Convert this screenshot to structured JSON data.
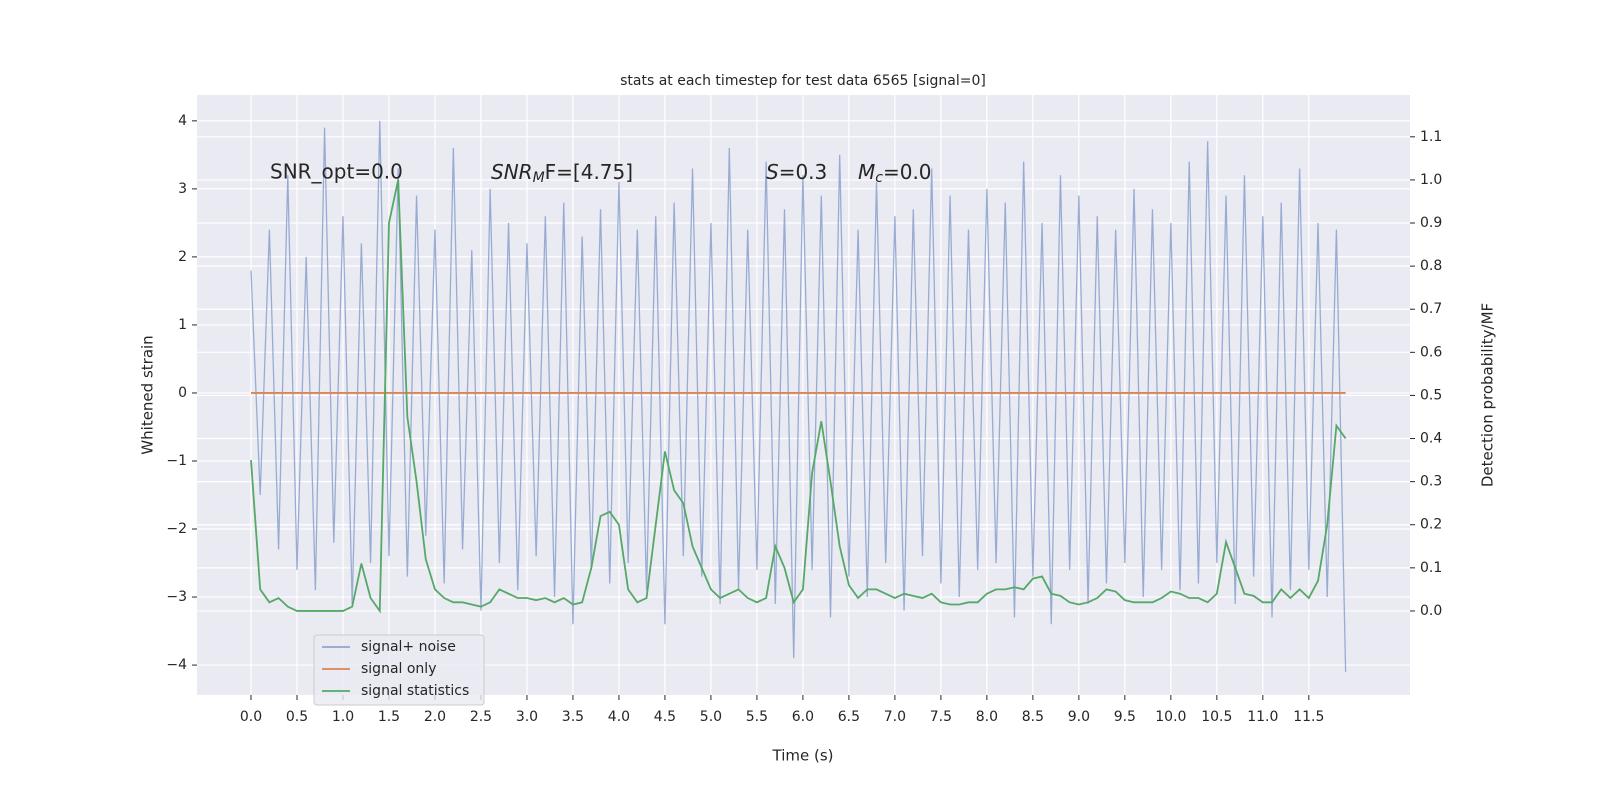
{
  "chart_data": {
    "type": "line",
    "title": "stats at each timestep for test data 6565 [signal=0]",
    "xlabel": "Time (s)",
    "ylabel": "Whitened strain",
    "y2label": "Detection probability/MF",
    "annotations": [
      {
        "text": "SNR_opt=0.0"
      },
      {
        "base": "SNR",
        "sub": "M",
        "rest": "F=[4.75]"
      },
      {
        "base": "S",
        "rest": "=0.3"
      },
      {
        "base": "M",
        "sub": "c",
        "rest": "=0.0"
      }
    ],
    "x": [
      0.0,
      0.1,
      0.2,
      0.3,
      0.4,
      0.5,
      0.6,
      0.7,
      0.8,
      0.9,
      1.0,
      1.1,
      1.2,
      1.3,
      1.4,
      1.5,
      1.6,
      1.7,
      1.8,
      1.9,
      2.0,
      2.1,
      2.2,
      2.3,
      2.4,
      2.5,
      2.6,
      2.7,
      2.8,
      2.9,
      3.0,
      3.1,
      3.2,
      3.3,
      3.4,
      3.5,
      3.6,
      3.7,
      3.8,
      3.9,
      4.0,
      4.1,
      4.2,
      4.3,
      4.4,
      4.5,
      4.6,
      4.7,
      4.8,
      4.9,
      5.0,
      5.1,
      5.2,
      5.3,
      5.4,
      5.5,
      5.6,
      5.7,
      5.8,
      5.9,
      6.0,
      6.1,
      6.2,
      6.3,
      6.4,
      6.5,
      6.6,
      6.7,
      6.8,
      6.9,
      7.0,
      7.1,
      7.2,
      7.3,
      7.4,
      7.5,
      7.6,
      7.7,
      7.8,
      7.9,
      8.0,
      8.1,
      8.2,
      8.3,
      8.4,
      8.5,
      8.6,
      8.7,
      8.8,
      8.9,
      9.0,
      9.1,
      9.2,
      9.3,
      9.4,
      9.5,
      9.6,
      9.7,
      9.8,
      9.9,
      10.0,
      10.1,
      10.2,
      10.3,
      10.4,
      10.5,
      10.6,
      10.7,
      10.8,
      10.9,
      11.0,
      11.1,
      11.2,
      11.3,
      11.4,
      11.5,
      11.6,
      11.7,
      11.8,
      11.9
    ],
    "series": [
      {
        "name": "signal+ noise",
        "color": "#8fa5cf",
        "values": [
          1.8,
          -1.5,
          2.4,
          -2.3,
          3.2,
          -2.6,
          2.0,
          -2.9,
          3.9,
          -2.2,
          2.6,
          -3.1,
          2.2,
          -2.5,
          4.0,
          -2.4,
          3.3,
          -2.7,
          2.9,
          -2.1,
          2.4,
          -2.8,
          3.6,
          -2.3,
          2.1,
          -3.2,
          3.0,
          -2.5,
          2.5,
          -2.9,
          2.2,
          -2.4,
          2.6,
          -3.0,
          2.8,
          -3.4,
          2.3,
          -2.6,
          2.7,
          -2.8,
          3.1,
          -2.5,
          2.4,
          -2.9,
          2.6,
          -3.4,
          2.8,
          -2.4,
          3.3,
          -2.7,
          2.5,
          -3.1,
          3.6,
          -2.9,
          2.4,
          -2.6,
          3.4,
          -3.1,
          2.7,
          -3.9,
          3.2,
          -2.6,
          2.9,
          -3.3,
          3.5,
          -2.7,
          2.4,
          -3.0,
          3.1,
          -2.5,
          2.6,
          -3.2,
          2.7,
          -2.4,
          3.3,
          -2.8,
          2.9,
          -3.0,
          2.4,
          -2.6,
          3.0,
          -2.5,
          2.8,
          -3.3,
          3.4,
          -2.7,
          2.5,
          -3.4,
          3.2,
          -2.6,
          2.9,
          -3.1,
          2.6,
          -2.8,
          2.4,
          -2.5,
          3.0,
          -3.0,
          2.7,
          -2.6,
          2.5,
          -2.9,
          3.4,
          -2.8,
          3.7,
          -2.5,
          2.9,
          -3.1,
          3.2,
          -2.7,
          2.6,
          -3.3,
          2.8,
          -2.9,
          3.3,
          -2.6,
          2.5,
          -3.0,
          2.4,
          -4.1
        ]
      },
      {
        "name": "signal only",
        "color": "#dd8452",
        "x": [
          0.0,
          11.9
        ],
        "values": [
          0,
          0
        ]
      },
      {
        "name": "signal statistics",
        "color": "#55a868",
        "axis": "y2",
        "values": [
          0.35,
          0.05,
          0.02,
          0.03,
          0.01,
          0.0,
          0.0,
          0.0,
          0.0,
          0.0,
          0.0,
          0.01,
          0.11,
          0.03,
          0.0,
          0.9,
          1.0,
          0.45,
          0.3,
          0.12,
          0.05,
          0.03,
          0.02,
          0.02,
          0.015,
          0.01,
          0.02,
          0.05,
          0.04,
          0.03,
          0.03,
          0.025,
          0.03,
          0.02,
          0.03,
          0.015,
          0.02,
          0.1,
          0.22,
          0.23,
          0.2,
          0.05,
          0.02,
          0.03,
          0.2,
          0.37,
          0.28,
          0.25,
          0.15,
          0.1,
          0.05,
          0.03,
          0.04,
          0.05,
          0.03,
          0.02,
          0.03,
          0.15,
          0.1,
          0.02,
          0.05,
          0.32,
          0.44,
          0.3,
          0.15,
          0.06,
          0.03,
          0.05,
          0.05,
          0.04,
          0.03,
          0.04,
          0.035,
          0.03,
          0.04,
          0.02,
          0.015,
          0.015,
          0.02,
          0.02,
          0.04,
          0.05,
          0.05,
          0.055,
          0.05,
          0.075,
          0.08,
          0.04,
          0.035,
          0.02,
          0.015,
          0.02,
          0.03,
          0.05,
          0.045,
          0.025,
          0.02,
          0.02,
          0.02,
          0.03,
          0.045,
          0.04,
          0.03,
          0.03,
          0.02,
          0.04,
          0.16,
          0.1,
          0.04,
          0.035,
          0.02,
          0.02,
          0.05,
          0.03,
          0.05,
          0.03,
          0.07,
          0.2,
          0.43,
          0.4
        ]
      }
    ],
    "xlim": [
      -0.587,
      12.6
    ],
    "ylim": [
      -4.44,
      4.38
    ],
    "y2lim": [
      -0.195,
      1.197
    ],
    "xticks": [
      {
        "value": 0,
        "label": "0.0"
      },
      {
        "value": 0.5,
        "label": "0.5"
      },
      {
        "value": 1,
        "label": "1.0"
      },
      {
        "value": 1.5,
        "label": "1.5"
      },
      {
        "value": 2,
        "label": "2.0"
      },
      {
        "value": 2.5,
        "label": "2.5"
      },
      {
        "value": 3,
        "label": "3.0"
      },
      {
        "value": 3.5,
        "label": "3.5"
      },
      {
        "value": 4,
        "label": "4.0"
      },
      {
        "value": 4.5,
        "label": "4.5"
      },
      {
        "value": 5,
        "label": "5.0"
      },
      {
        "value": 5.5,
        "label": "5.5"
      },
      {
        "value": 6,
        "label": "6.0"
      },
      {
        "value": 6.5,
        "label": "6.5"
      },
      {
        "value": 7,
        "label": "7.0"
      },
      {
        "value": 7.5,
        "label": "7.5"
      },
      {
        "value": 8,
        "label": "8.0"
      },
      {
        "value": 8.5,
        "label": "8.5"
      },
      {
        "value": 9,
        "label": "9.0"
      },
      {
        "value": 9.5,
        "label": "9.5"
      },
      {
        "value": 10,
        "label": "10.0"
      },
      {
        "value": 10.5,
        "label": "10.5"
      },
      {
        "value": 11,
        "label": "11.0"
      },
      {
        "value": 11.5,
        "label": "11.5"
      }
    ],
    "yticks": [
      {
        "value": -4,
        "label": "−4"
      },
      {
        "value": -3,
        "label": "−3"
      },
      {
        "value": -2,
        "label": "−2"
      },
      {
        "value": -1,
        "label": "−1"
      },
      0,
      1,
      2,
      3,
      4
    ],
    "y2ticks": [
      {
        "value": 0,
        "label": "0.0"
      },
      {
        "value": 0.1,
        "label": "0.1"
      },
      {
        "value": 0.2,
        "label": "0.2"
      },
      {
        "value": 0.3,
        "label": "0.3"
      },
      {
        "value": 0.4,
        "label": "0.4"
      },
      {
        "value": 0.5,
        "label": "0.5"
      },
      {
        "value": 0.6,
        "label": "0.6"
      },
      {
        "value": 0.7,
        "label": "0.7"
      },
      {
        "value": 0.8,
        "label": "0.8"
      },
      {
        "value": 0.9,
        "label": "0.9"
      },
      {
        "value": 1.0,
        "label": "1.0"
      },
      {
        "value": 1.1,
        "label": "1.1"
      }
    ],
    "grid": true,
    "legend": "lower left"
  }
}
